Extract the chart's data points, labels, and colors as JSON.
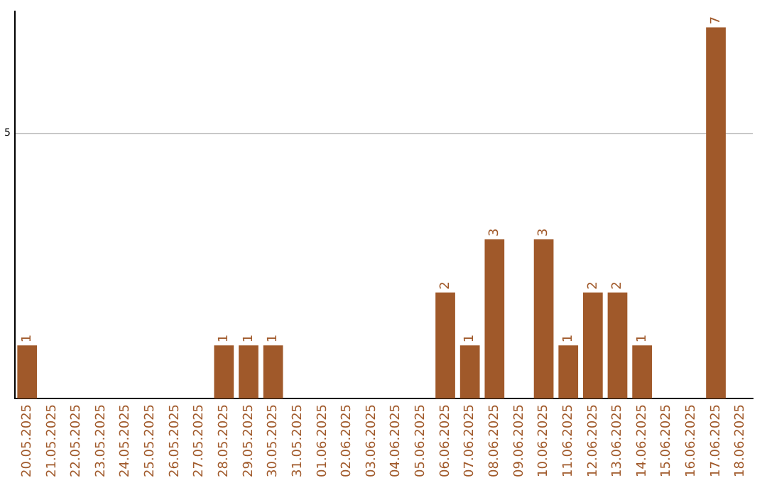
{
  "chart_data": {
    "type": "bar",
    "categories": [
      "20.05.2025",
      "21.05.2025",
      "22.05.2025",
      "23.05.2025",
      "24.05.2025",
      "25.05.2025",
      "26.05.2025",
      "27.05.2025",
      "28.05.2025",
      "29.05.2025",
      "30.05.2025",
      "31.05.2025",
      "01.06.2025",
      "02.06.2025",
      "03.06.2025",
      "04.06.2025",
      "05.06.2025",
      "06.06.2025",
      "07.06.2025",
      "08.06.2025",
      "09.06.2025",
      "10.06.2025",
      "11.06.2025",
      "12.06.2025",
      "13.06.2025",
      "14.06.2025",
      "15.06.2025",
      "16.06.2025",
      "17.06.2025",
      "18.06.2025"
    ],
    "values": [
      1,
      0,
      0,
      0,
      0,
      0,
      0,
      0,
      1,
      1,
      1,
      0,
      0,
      0,
      0,
      0,
      0,
      2,
      1,
      3,
      0,
      3,
      1,
      2,
      2,
      1,
      0,
      0,
      7,
      0
    ],
    "value_labels": [
      "1",
      null,
      null,
      null,
      null,
      null,
      null,
      null,
      "1",
      "1",
      "1",
      null,
      null,
      null,
      null,
      null,
      null,
      "2",
      "1",
      "3",
      null,
      "3",
      "1",
      "2",
      "2",
      "1",
      null,
      null,
      "7",
      null
    ],
    "color": "#a0592a",
    "ylim": [
      0,
      7.3
    ],
    "yticks": [
      5
    ],
    "grid": "y",
    "legend": false
  }
}
